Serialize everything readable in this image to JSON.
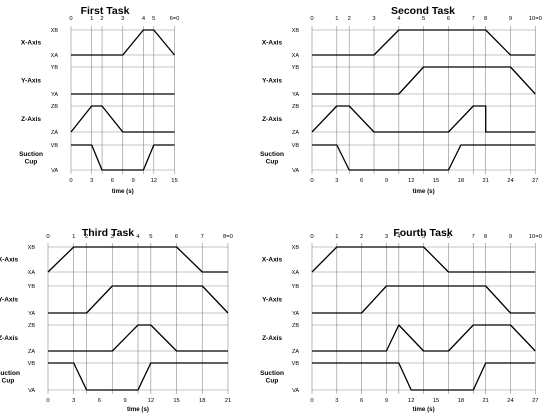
{
  "diagrams": [
    {
      "title": "First Task",
      "x_label": "time (s)",
      "time_ticks": [
        "0",
        "3",
        "6",
        "9",
        "12",
        "15"
      ],
      "step_labels": [
        "0",
        "1",
        "2",
        "3",
        "4",
        "5",
        "6=0"
      ],
      "steps": [
        0,
        3,
        4.5,
        7.5,
        10.5,
        12,
        15
      ],
      "axes": [
        {
          "name": "X-Axis",
          "levels": [
            "XB",
            "XA"
          ],
          "points": [
            [
              0,
              0
            ],
            [
              7.5,
              0
            ],
            [
              10.5,
              1
            ],
            [
              12,
              1
            ],
            [
              15,
              0
            ]
          ]
        },
        {
          "name": "Y-Axis",
          "levels": [
            "YB",
            "YA"
          ],
          "points": [
            [
              0,
              0
            ],
            [
              15,
              0
            ]
          ]
        },
        {
          "name": "Z-Axis",
          "levels": [
            "ZB",
            "ZA"
          ],
          "points": [
            [
              0,
              0
            ],
            [
              3,
              1
            ],
            [
              4.5,
              1
            ],
            [
              7.5,
              0
            ],
            [
              15,
              0
            ]
          ]
        },
        {
          "name": "Suction\nCup",
          "levels": [
            "VB",
            "VA"
          ],
          "points": [
            [
              0,
              1
            ],
            [
              3,
              1
            ],
            [
              4.5,
              0
            ],
            [
              10.5,
              0
            ],
            [
              12,
              1
            ],
            [
              15,
              1
            ]
          ]
        }
      ]
    },
    {
      "title": "Second Task",
      "x_label": "time (s)",
      "time_ticks": [
        "0",
        "3",
        "6",
        "9",
        "12",
        "15",
        "18",
        "21",
        "24",
        "27"
      ],
      "step_labels": [
        "0",
        "1",
        "2",
        "3",
        "4",
        "5",
        "6",
        "7",
        "8",
        "9",
        "10=0"
      ],
      "steps": [
        0,
        3,
        4.5,
        7.5,
        10.5,
        13.5,
        16.5,
        19.5,
        21,
        24,
        27
      ],
      "axes": [
        {
          "name": "X-Axis",
          "levels": [
            "XB",
            "XA"
          ],
          "points": [
            [
              0,
              0
            ],
            [
              7.5,
              0
            ],
            [
              10.5,
              1
            ],
            [
              21,
              1
            ],
            [
              24,
              0
            ],
            [
              27,
              0
            ]
          ]
        },
        {
          "name": "Y-Axis",
          "levels": [
            "YB",
            "YA"
          ],
          "points": [
            [
              0,
              0
            ],
            [
              10.5,
              0
            ],
            [
              13.5,
              1
            ],
            [
              24,
              1
            ],
            [
              27,
              0
            ]
          ]
        },
        {
          "name": "Z-Axis",
          "levels": [
            "ZB",
            "ZA"
          ],
          "points": [
            [
              0,
              0
            ],
            [
              3,
              1
            ],
            [
              4.5,
              1
            ],
            [
              7.5,
              0
            ],
            [
              13.5,
              0
            ],
            [
              16.5,
              0
            ],
            [
              19.5,
              1
            ],
            [
              21,
              1
            ],
            [
              21,
              0
            ],
            [
              27,
              0
            ]
          ]
        },
        {
          "name": "Suction\nCup",
          "levels": [
            "VB",
            "VA"
          ],
          "points": [
            [
              0,
              1
            ],
            [
              3,
              1
            ],
            [
              4.5,
              0
            ],
            [
              16.5,
              0
            ],
            [
              18,
              1
            ],
            [
              27,
              1
            ]
          ]
        }
      ]
    },
    {
      "title": "Third Task",
      "x_label": "time (s)",
      "time_ticks": [
        "0",
        "3",
        "6",
        "9",
        "12",
        "15",
        "18",
        "21"
      ],
      "step_labels": [
        "0",
        "1",
        "2",
        "3",
        "4",
        "5",
        "6",
        "7",
        "8=0"
      ],
      "steps": [
        0,
        3,
        4.5,
        7.5,
        10.5,
        12,
        15,
        18,
        21
      ],
      "axes": [
        {
          "name": "X-Axis",
          "levels": [
            "XB",
            "XA"
          ],
          "points": [
            [
              0,
              0
            ],
            [
              3,
              1
            ],
            [
              15,
              1
            ],
            [
              18,
              0
            ],
            [
              21,
              0
            ]
          ]
        },
        {
          "name": "Y-Axis",
          "levels": [
            "YB",
            "YA"
          ],
          "points": [
            [
              0,
              0
            ],
            [
              4.5,
              0
            ],
            [
              7.5,
              1
            ],
            [
              18,
              1
            ],
            [
              21,
              0
            ]
          ]
        },
        {
          "name": "Z-Axis",
          "levels": [
            "ZB",
            "ZA"
          ],
          "points": [
            [
              0,
              0
            ],
            [
              7.5,
              0
            ],
            [
              10.5,
              1
            ],
            [
              12,
              1
            ],
            [
              15,
              0
            ],
            [
              21,
              0
            ]
          ]
        },
        {
          "name": "Suction\nCup",
          "levels": [
            "VB",
            "VA"
          ],
          "points": [
            [
              0,
              1
            ],
            [
              3,
              1
            ],
            [
              4.5,
              0
            ],
            [
              10.5,
              0
            ],
            [
              12,
              1
            ],
            [
              21,
              1
            ]
          ]
        }
      ]
    },
    {
      "title": "Fourth Task",
      "x_label": "time (s)",
      "time_ticks": [
        "0",
        "3",
        "6",
        "9",
        "12",
        "15",
        "18",
        "21",
        "24",
        "27"
      ],
      "step_labels": [
        "0",
        "1",
        "2",
        "3",
        "4",
        "5",
        "6",
        "7",
        "8",
        "9",
        "10=0"
      ],
      "steps": [
        0,
        3,
        6,
        9,
        10.5,
        13.5,
        16.5,
        19.5,
        21,
        24,
        27
      ],
      "axes": [
        {
          "name": "X-Axis",
          "levels": [
            "XB",
            "XA"
          ],
          "points": [
            [
              0,
              0
            ],
            [
              3,
              1
            ],
            [
              13.5,
              1
            ],
            [
              16.5,
              0
            ],
            [
              27,
              0
            ]
          ]
        },
        {
          "name": "Y-Axis",
          "levels": [
            "YB",
            "YA"
          ],
          "points": [
            [
              0,
              0
            ],
            [
              6,
              0
            ],
            [
              9,
              1
            ],
            [
              21,
              1
            ],
            [
              24,
              0
            ],
            [
              27,
              0
            ]
          ]
        },
        {
          "name": "Z-Axis",
          "levels": [
            "ZB",
            "ZA"
          ],
          "points": [
            [
              0,
              0
            ],
            [
              9,
              0
            ],
            [
              10.5,
              1
            ],
            [
              13.5,
              0
            ],
            [
              16.5,
              0
            ],
            [
              19.5,
              1
            ],
            [
              24,
              1
            ],
            [
              27,
              0
            ]
          ]
        },
        {
          "name": "Suction\nCup",
          "levels": [
            "VB",
            "VA"
          ],
          "points": [
            [
              0,
              1
            ],
            [
              10.5,
              1
            ],
            [
              12,
              0
            ],
            [
              19.5,
              0
            ],
            [
              21,
              1
            ],
            [
              27,
              1
            ]
          ]
        }
      ]
    }
  ]
}
